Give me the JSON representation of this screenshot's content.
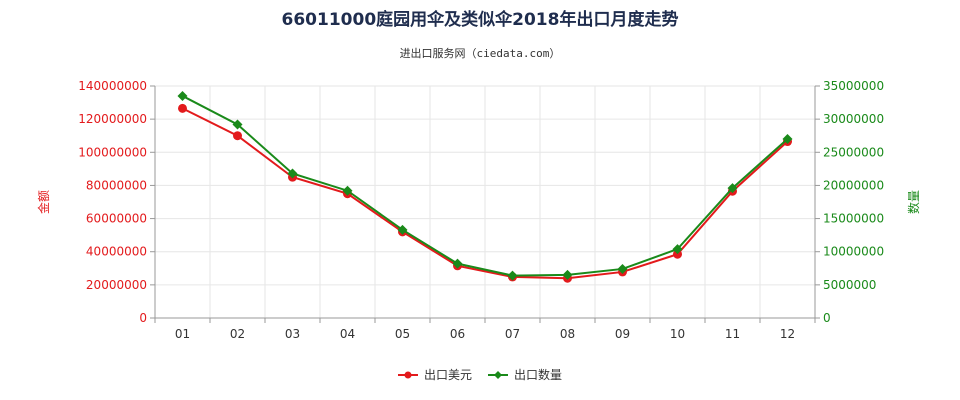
{
  "header": {
    "title": "66011000庭园用伞及类似伞2018年出口月度走势",
    "subtitle": "进出口服务网（ciedata.com）"
  },
  "colors": {
    "left_series": "#e31a1c",
    "right_series": "#1a8a1a",
    "left_axis_text": "#e31a1c",
    "right_axis_text": "#1a8a1a",
    "grid": "#e6e6e6",
    "title": "#1f2d4e"
  },
  "chart_data": {
    "type": "line",
    "categories": [
      "01",
      "02",
      "03",
      "04",
      "05",
      "06",
      "07",
      "08",
      "09",
      "10",
      "11",
      "12"
    ],
    "series": [
      {
        "name": "出口美元",
        "axis": "left",
        "color": "#e31a1c",
        "marker": "circle",
        "values": [
          126500000,
          110000000,
          85000000,
          75000000,
          52000000,
          31500000,
          24800000,
          24000000,
          27800000,
          38500000,
          76500000,
          106500000
        ]
      },
      {
        "name": "出口数量",
        "axis": "right",
        "color": "#1a8a1a",
        "marker": "diamond",
        "values": [
          33500000,
          29200000,
          21800000,
          19200000,
          13300000,
          8200000,
          6400000,
          6500000,
          7400000,
          10400000,
          19600000,
          27000000
        ]
      }
    ],
    "y_left": {
      "label": "金额",
      "lim": [
        0,
        140000000
      ],
      "ticks": [
        "0",
        "20000000",
        "40000000",
        "60000000",
        "80000000",
        "100000000",
        "120000000",
        "140000000"
      ]
    },
    "y_right": {
      "label": "数量",
      "lim": [
        0,
        35000000
      ],
      "ticks": [
        "0",
        "5000000",
        "10000000",
        "15000000",
        "20000000",
        "25000000",
        "30000000",
        "35000000"
      ]
    },
    "grid": true,
    "legend_position": "bottom-center"
  }
}
